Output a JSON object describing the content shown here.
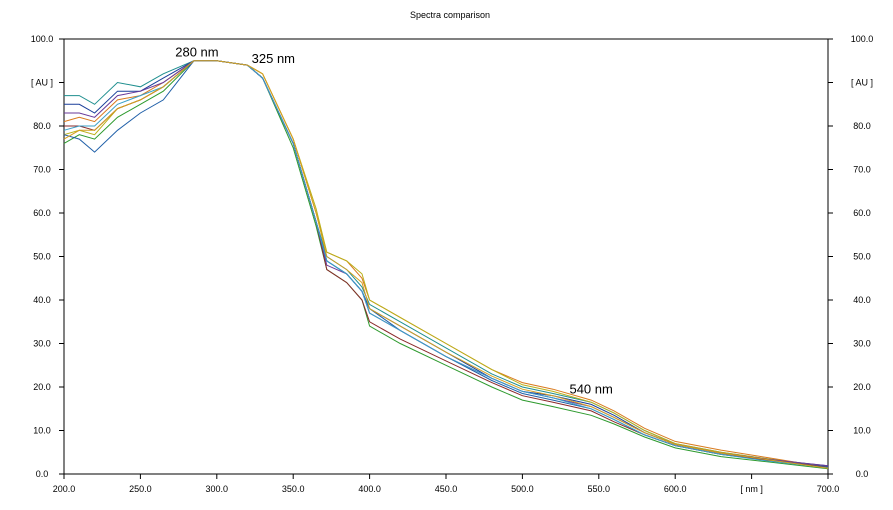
{
  "chart_data": {
    "type": "line",
    "title": "Spectra comparison",
    "xlabel": "[ nm ]",
    "ylabel": "[ AU ]",
    "xlim": [
      200,
      700
    ],
    "ylim": [
      0,
      100
    ],
    "grid": false,
    "legend": "none",
    "right_axis": true,
    "x_ticks": [
      "200.0",
      "250.0",
      "300.0",
      "350.0",
      "400.0",
      "450.0",
      "500.0",
      "550.0",
      "600.0",
      "[ nm ]",
      "700.0"
    ],
    "y_ticks": [
      "0.0",
      "10.0",
      "20.0",
      "30.0",
      "40.0",
      "50.0",
      "60.0",
      "70.0",
      "80.0",
      "[ AU ]",
      "100.0"
    ],
    "annotations": [
      {
        "text": "280 nm",
        "x": 287,
        "y": 96
      },
      {
        "text": "325 nm",
        "x": 337,
        "y": 94.5
      },
      {
        "text": "540 nm",
        "x": 545,
        "y": 18.5
      }
    ],
    "series": [
      {
        "color": "#1f8f8f",
        "values": [
          [
            200,
            87
          ],
          [
            210,
            87
          ],
          [
            220,
            85
          ],
          [
            235,
            90
          ],
          [
            250,
            89
          ],
          [
            265,
            92
          ],
          [
            285,
            95
          ],
          [
            300,
            95
          ],
          [
            320,
            94
          ],
          [
            330,
            91
          ],
          [
            350,
            76
          ],
          [
            365,
            58
          ],
          [
            372,
            50
          ],
          [
            385,
            47
          ],
          [
            395,
            43
          ],
          [
            400,
            39
          ],
          [
            420,
            35
          ],
          [
            450,
            29
          ],
          [
            480,
            23
          ],
          [
            500,
            20
          ],
          [
            520,
            18.5
          ],
          [
            545,
            16.5
          ],
          [
            560,
            14
          ],
          [
            580,
            10
          ],
          [
            600,
            7
          ],
          [
            630,
            5
          ],
          [
            660,
            3.5
          ],
          [
            700,
            1.8
          ]
        ]
      },
      {
        "color": "#1a3f9a",
        "values": [
          [
            200,
            85
          ],
          [
            210,
            85
          ],
          [
            220,
            83
          ],
          [
            235,
            88
          ],
          [
            250,
            88
          ],
          [
            265,
            91
          ],
          [
            285,
            95
          ],
          [
            300,
            95
          ],
          [
            320,
            94
          ],
          [
            330,
            91
          ],
          [
            350,
            76
          ],
          [
            365,
            58
          ],
          [
            372,
            49
          ],
          [
            385,
            46
          ],
          [
            395,
            42
          ],
          [
            400,
            38
          ],
          [
            420,
            34
          ],
          [
            450,
            28
          ],
          [
            480,
            22
          ],
          [
            500,
            19
          ],
          [
            520,
            18
          ],
          [
            545,
            16
          ],
          [
            560,
            13.5
          ],
          [
            580,
            9.5
          ],
          [
            600,
            6.8
          ],
          [
            630,
            4.8
          ],
          [
            660,
            3.3
          ],
          [
            700,
            1.9
          ]
        ]
      },
      {
        "color": "#d97a1e",
        "values": [
          [
            200,
            81
          ],
          [
            210,
            82
          ],
          [
            220,
            81
          ],
          [
            235,
            86
          ],
          [
            250,
            87
          ],
          [
            265,
            90
          ],
          [
            285,
            95
          ],
          [
            300,
            95
          ],
          [
            320,
            94
          ],
          [
            330,
            92
          ],
          [
            350,
            77
          ],
          [
            365,
            60
          ],
          [
            372,
            51
          ],
          [
            385,
            49
          ],
          [
            395,
            45
          ],
          [
            400,
            40
          ],
          [
            420,
            36
          ],
          [
            450,
            30
          ],
          [
            480,
            24
          ],
          [
            500,
            21
          ],
          [
            520,
            19.5
          ],
          [
            545,
            17
          ],
          [
            560,
            14.5
          ],
          [
            580,
            10.5
          ],
          [
            600,
            7.5
          ],
          [
            630,
            5.5
          ],
          [
            660,
            3.8
          ],
          [
            700,
            1.5
          ]
        ]
      },
      {
        "color": "#b9b019",
        "values": [
          [
            200,
            78
          ],
          [
            210,
            79
          ],
          [
            220,
            78
          ],
          [
            235,
            84
          ],
          [
            250,
            86
          ],
          [
            265,
            89
          ],
          [
            285,
            95
          ],
          [
            300,
            95
          ],
          [
            320,
            94
          ],
          [
            330,
            92
          ],
          [
            350,
            77
          ],
          [
            365,
            61
          ],
          [
            372,
            51
          ],
          [
            385,
            49
          ],
          [
            395,
            46
          ],
          [
            400,
            40
          ],
          [
            420,
            36
          ],
          [
            450,
            30
          ],
          [
            480,
            24
          ],
          [
            500,
            20.5
          ],
          [
            520,
            19
          ],
          [
            545,
            16.5
          ],
          [
            560,
            14
          ],
          [
            580,
            10
          ],
          [
            600,
            7
          ],
          [
            630,
            5
          ],
          [
            660,
            3.5
          ],
          [
            700,
            1.4
          ]
        ]
      },
      {
        "color": "#2d9a2d",
        "values": [
          [
            200,
            76
          ],
          [
            210,
            78
          ],
          [
            220,
            77
          ],
          [
            235,
            82
          ],
          [
            250,
            85
          ],
          [
            265,
            88
          ],
          [
            285,
            95
          ],
          [
            300,
            95
          ],
          [
            320,
            94
          ],
          [
            330,
            91
          ],
          [
            350,
            75
          ],
          [
            365,
            57
          ],
          [
            372,
            47
          ],
          [
            385,
            44
          ],
          [
            395,
            40
          ],
          [
            400,
            34
          ],
          [
            420,
            30
          ],
          [
            450,
            25
          ],
          [
            480,
            20
          ],
          [
            500,
            17
          ],
          [
            520,
            15.5
          ],
          [
            545,
            13.5
          ],
          [
            560,
            11.5
          ],
          [
            580,
            8.5
          ],
          [
            600,
            6
          ],
          [
            630,
            4
          ],
          [
            660,
            2.8
          ],
          [
            700,
            1.2
          ]
        ]
      },
      {
        "color": "#1f5fa8",
        "values": [
          [
            200,
            78
          ],
          [
            210,
            77
          ],
          [
            220,
            74
          ],
          [
            235,
            79
          ],
          [
            250,
            83
          ],
          [
            265,
            86
          ],
          [
            285,
            95
          ],
          [
            300,
            95
          ],
          [
            320,
            94
          ],
          [
            330,
            91
          ],
          [
            350,
            76
          ],
          [
            365,
            58
          ],
          [
            372,
            49
          ],
          [
            385,
            46
          ],
          [
            395,
            42
          ],
          [
            400,
            38
          ],
          [
            420,
            33
          ],
          [
            450,
            27
          ],
          [
            480,
            21.5
          ],
          [
            500,
            18.5
          ],
          [
            520,
            17
          ],
          [
            545,
            15
          ],
          [
            560,
            12.5
          ],
          [
            580,
            9
          ],
          [
            600,
            6.5
          ],
          [
            630,
            4.5
          ],
          [
            660,
            3.2
          ],
          [
            700,
            1.6
          ]
        ]
      },
      {
        "color": "#8a2a2a",
        "values": [
          [
            200,
            80
          ],
          [
            210,
            80
          ],
          [
            220,
            79
          ],
          [
            235,
            84
          ],
          [
            250,
            86
          ],
          [
            265,
            89
          ],
          [
            285,
            95
          ],
          [
            300,
            95
          ],
          [
            320,
            94
          ],
          [
            330,
            91
          ],
          [
            350,
            76
          ],
          [
            365,
            58
          ],
          [
            372,
            47
          ],
          [
            385,
            44
          ],
          [
            395,
            40
          ],
          [
            400,
            35
          ],
          [
            420,
            31
          ],
          [
            450,
            26
          ],
          [
            480,
            21
          ],
          [
            500,
            18
          ],
          [
            520,
            16.5
          ],
          [
            545,
            14.5
          ],
          [
            560,
            12
          ],
          [
            580,
            9
          ],
          [
            600,
            6.5
          ],
          [
            630,
            4.5
          ],
          [
            660,
            3.2
          ],
          [
            700,
            1.5
          ]
        ]
      },
      {
        "color": "#6a3a9a",
        "values": [
          [
            200,
            83
          ],
          [
            210,
            83
          ],
          [
            220,
            82
          ],
          [
            235,
            87
          ],
          [
            250,
            88
          ],
          [
            265,
            90
          ],
          [
            285,
            95
          ],
          [
            300,
            95
          ],
          [
            320,
            94
          ],
          [
            330,
            91
          ],
          [
            350,
            76
          ],
          [
            365,
            58
          ],
          [
            372,
            48
          ],
          [
            385,
            46
          ],
          [
            395,
            42
          ],
          [
            400,
            37
          ],
          [
            420,
            33
          ],
          [
            450,
            27
          ],
          [
            480,
            22
          ],
          [
            500,
            19
          ],
          [
            520,
            17.5
          ],
          [
            545,
            15.5
          ],
          [
            560,
            13
          ],
          [
            580,
            9.5
          ],
          [
            600,
            6.8
          ],
          [
            630,
            4.8
          ],
          [
            660,
            3.4
          ],
          [
            700,
            1.9
          ]
        ]
      },
      {
        "color": "#3aa0c8",
        "values": [
          [
            200,
            79
          ],
          [
            210,
            80
          ],
          [
            220,
            80
          ],
          [
            235,
            85
          ],
          [
            250,
            87
          ],
          [
            265,
            89
          ],
          [
            285,
            95
          ],
          [
            300,
            95
          ],
          [
            320,
            94
          ],
          [
            330,
            91
          ],
          [
            350,
            76
          ],
          [
            365,
            58
          ],
          [
            372,
            49
          ],
          [
            385,
            46
          ],
          [
            395,
            42
          ],
          [
            400,
            37
          ],
          [
            420,
            33
          ],
          [
            450,
            27
          ],
          [
            480,
            22
          ],
          [
            500,
            19
          ],
          [
            520,
            17.5
          ],
          [
            545,
            15
          ],
          [
            560,
            12.5
          ],
          [
            580,
            9
          ],
          [
            600,
            6.5
          ],
          [
            630,
            4.5
          ],
          [
            660,
            3
          ],
          [
            700,
            1.4
          ]
        ]
      },
      {
        "color": "#d4a020",
        "values": [
          [
            200,
            77
          ],
          [
            210,
            79
          ],
          [
            220,
            79
          ],
          [
            235,
            84
          ],
          [
            250,
            86
          ],
          [
            265,
            89
          ],
          [
            285,
            95
          ],
          [
            300,
            95
          ],
          [
            320,
            94
          ],
          [
            330,
            92
          ],
          [
            350,
            77
          ],
          [
            365,
            60
          ],
          [
            372,
            50
          ],
          [
            385,
            47
          ],
          [
            395,
            44
          ],
          [
            400,
            38
          ],
          [
            420,
            34
          ],
          [
            450,
            28
          ],
          [
            480,
            22.5
          ],
          [
            500,
            19.5
          ],
          [
            520,
            18
          ],
          [
            545,
            15.5
          ],
          [
            560,
            13
          ],
          [
            580,
            9.5
          ],
          [
            600,
            6.8
          ],
          [
            630,
            4.8
          ],
          [
            660,
            3.3
          ],
          [
            700,
            1.3
          ]
        ]
      }
    ]
  }
}
